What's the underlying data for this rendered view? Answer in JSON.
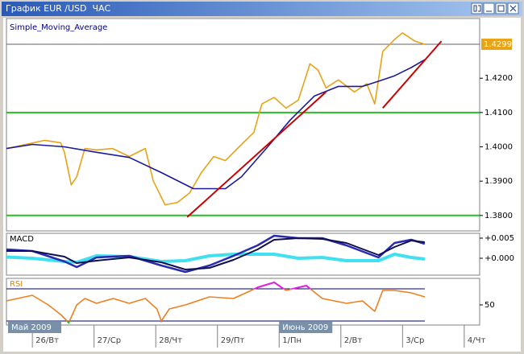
{
  "window": {
    "title": "График EUR /USD  ЧАС"
  },
  "x_axis": {
    "xlim": [
      -0.42,
      7.25
    ],
    "xticks": [
      {
        "value": 0,
        "label": "26/Вт"
      },
      {
        "value": 1,
        "label": "27/Ср"
      },
      {
        "value": 2,
        "label": "28/Чт"
      },
      {
        "value": 3,
        "label": "29/Пт"
      },
      {
        "value": 4,
        "label": "1/Пн"
      },
      {
        "value": 5,
        "label": "2/Вт"
      },
      {
        "value": 6,
        "label": "3/Ср"
      },
      {
        "value": 7,
        "label": "4/Чт"
      }
    ],
    "months": [
      {
        "value": -0.42,
        "label": "Май 2009"
      },
      {
        "value": 4,
        "label": "Июнь 2009"
      }
    ]
  },
  "chart_data": [
    {
      "type": "line",
      "title": "Simple_Moving_Average",
      "ylim": [
        1.3755,
        1.4374
      ],
      "yticks": [
        {
          "value": 1.42,
          "label": "1.4200"
        },
        {
          "value": 1.41,
          "label": "1.4100"
        },
        {
          "value": 1.4,
          "label": "1.4000"
        },
        {
          "value": 1.39,
          "label": "1.3900"
        },
        {
          "value": 1.38,
          "label": "1.3800"
        }
      ],
      "last_price": 1.4299,
      "last_price_color": "#e8a317",
      "hlines": [
        {
          "value": 1.41,
          "color": "#22c022"
        },
        {
          "value": 1.38,
          "color": "#22c022"
        }
      ],
      "series": [
        {
          "color": "#e8a317",
          "x": [
            -0.42,
            0,
            0.2,
            0.46,
            0.52,
            0.63,
            0.72,
            0.85,
            1.04,
            1.3,
            1.57,
            1.83,
            1.96,
            2.15,
            2.35,
            2.55,
            2.74,
            2.94,
            3.13,
            3.39,
            3.59,
            3.72,
            3.92,
            4.11,
            4.31,
            4.5,
            4.63,
            4.76,
            4.96,
            5.22,
            5.42,
            5.55,
            5.68,
            5.87,
            6.0,
            6.2,
            6.36
          ],
          "values": [
            1.3995,
            1.4011,
            1.4019,
            1.4012,
            1.3984,
            1.3889,
            1.3913,
            1.3995,
            1.3991,
            1.3995,
            1.3972,
            1.3995,
            1.3901,
            1.3831,
            1.3838,
            1.3866,
            1.3925,
            1.3972,
            1.396,
            1.4007,
            1.4042,
            1.4125,
            1.4144,
            1.4113,
            1.4136,
            1.4242,
            1.4224,
            1.4172,
            1.4195,
            1.416,
            1.4184,
            1.4125,
            1.4278,
            1.4313,
            1.4332,
            1.4308,
            1.4299
          ]
        },
        {
          "color": "#1a1a9a",
          "x": [
            -0.42,
            0,
            0.52,
            1.04,
            1.57,
            2.09,
            2.61,
            3.13,
            3.39,
            3.79,
            4.18,
            4.57,
            4.96,
            5.35,
            5.61,
            5.87,
            6.14,
            6.36
          ],
          "values": [
            1.3995,
            1.4007,
            1.4,
            1.3984,
            1.3969,
            1.3925,
            1.3878,
            1.3878,
            1.3913,
            1.3995,
            1.4078,
            1.4148,
            1.4176,
            1.4176,
            1.4191,
            1.4207,
            1.4231,
            1.4254
          ]
        }
      ],
      "trendlines": [
        {
          "color": "#cc0000",
          "x": [
            2.51,
            4.76
          ],
          "values": [
            1.3795,
            1.416
          ]
        },
        {
          "color": "#cc0000",
          "x": [
            5.68,
            6.63
          ],
          "values": [
            1.4113,
            1.4308
          ]
        }
      ]
    },
    {
      "type": "line",
      "title": "MACD",
      "ylim": [
        -0.0042,
        0.0062
      ],
      "yticks": [
        {
          "value": 0.005,
          "label": "+0.005"
        },
        {
          "value": 0,
          "label": "+0.000"
        }
      ],
      "x": [
        -0.42,
        0,
        0.52,
        0.72,
        1.04,
        1.57,
        2.09,
        2.48,
        2.87,
        3.26,
        3.65,
        3.92,
        4.31,
        4.7,
        5.09,
        5.61,
        5.87,
        6.14,
        6.36
      ],
      "series": [
        {
          "color": "#40e0f0",
          "width": 4,
          "values": [
            0.0003,
            0,
            -0.0008,
            -0.001,
            0.0006,
            0.0004,
            -0.0008,
            -0.0006,
            0.0006,
            0.001,
            0.001,
            0.001,
            0,
            0.0002,
            -0.0006,
            -0.0006,
            0.001,
            0.0002,
            -0.0002
          ]
        },
        {
          "color": "#2a2ab0",
          "width": 2.5,
          "values": [
            0.0022,
            0.0018,
            -0.0008,
            -0.0022,
            0.0002,
            0.0006,
            -0.0018,
            -0.0034,
            -0.0018,
            0.0006,
            0.0032,
            0.0056,
            0.005,
            0.005,
            0.0032,
            0.0002,
            0.0038,
            0.0046,
            0.0036
          ]
        },
        {
          "color": "#101050",
          "width": 2,
          "values": [
            0.0018,
            0.0018,
            0.0004,
            -0.0012,
            -0.0006,
            0.0002,
            -0.001,
            -0.0028,
            -0.0024,
            -0.0004,
            0.0022,
            0.0046,
            0.005,
            0.0048,
            0.0038,
            0.0008,
            0.0028,
            0.0044,
            0.004
          ]
        }
      ]
    },
    {
      "type": "line",
      "title": "RSI",
      "ylim": [
        25,
        83
      ],
      "yticks": [
        50
      ],
      "levels": [
        70,
        30
      ],
      "level_color": "#000060",
      "overbought_color": "#e020e0",
      "oversold_color": "#20c020",
      "x": [
        -0.42,
        0,
        0.26,
        0.46,
        0.59,
        0.72,
        0.85,
        1.04,
        1.31,
        1.57,
        1.83,
        2.02,
        2.09,
        2.22,
        2.48,
        2.87,
        3.26,
        3.66,
        3.92,
        4.11,
        4.44,
        4.7,
        5.09,
        5.35,
        5.55,
        5.68,
        5.87,
        6.14,
        6.36
      ],
      "series": [
        {
          "color": "#ee8020",
          "values": [
            55,
            62,
            50,
            38,
            28,
            50,
            58,
            52,
            58,
            52,
            58,
            45,
            30,
            45,
            50,
            60,
            58,
            72,
            78,
            68,
            74,
            58,
            52,
            55,
            42,
            68,
            68,
            65,
            60
          ]
        }
      ]
    }
  ]
}
